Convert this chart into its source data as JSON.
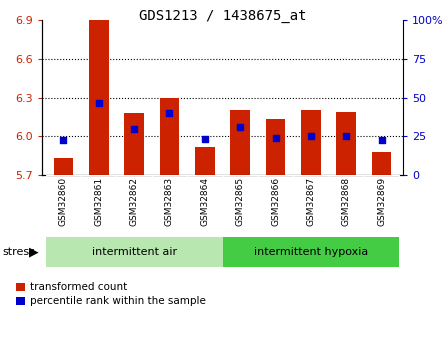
{
  "title": "GDS1213 / 1438675_at",
  "categories": [
    "GSM32860",
    "GSM32861",
    "GSM32862",
    "GSM32863",
    "GSM32864",
    "GSM32865",
    "GSM32866",
    "GSM32867",
    "GSM32868",
    "GSM32869"
  ],
  "bar_bottom": 5.7,
  "bar_tops": [
    5.83,
    6.9,
    6.18,
    6.3,
    5.92,
    6.2,
    6.13,
    6.2,
    6.19,
    5.88
  ],
  "blue_values": [
    5.97,
    6.26,
    6.06,
    6.18,
    5.98,
    6.07,
    5.99,
    6.0,
    6.0,
    5.97
  ],
  "ylim": [
    5.7,
    6.9
  ],
  "y2lim": [
    0,
    100
  ],
  "yticks": [
    5.7,
    6.0,
    6.3,
    6.6,
    6.9
  ],
  "y2ticks": [
    0,
    25,
    50,
    75,
    100
  ],
  "bar_color": "#cc2200",
  "blue_color": "#0000cc",
  "tick_area_color": "#c8c8c8",
  "group1_color": "#b8e8b0",
  "group2_color": "#44cc44",
  "group1_label": "intermittent air",
  "group2_label": "intermittent hypoxia",
  "stress_label": "stress",
  "group1_indices": [
    0,
    1,
    2,
    3,
    4
  ],
  "group2_indices": [
    5,
    6,
    7,
    8,
    9
  ],
  "legend_red": "transformed count",
  "legend_blue": "percentile rank within the sample",
  "bar_width": 0.55
}
